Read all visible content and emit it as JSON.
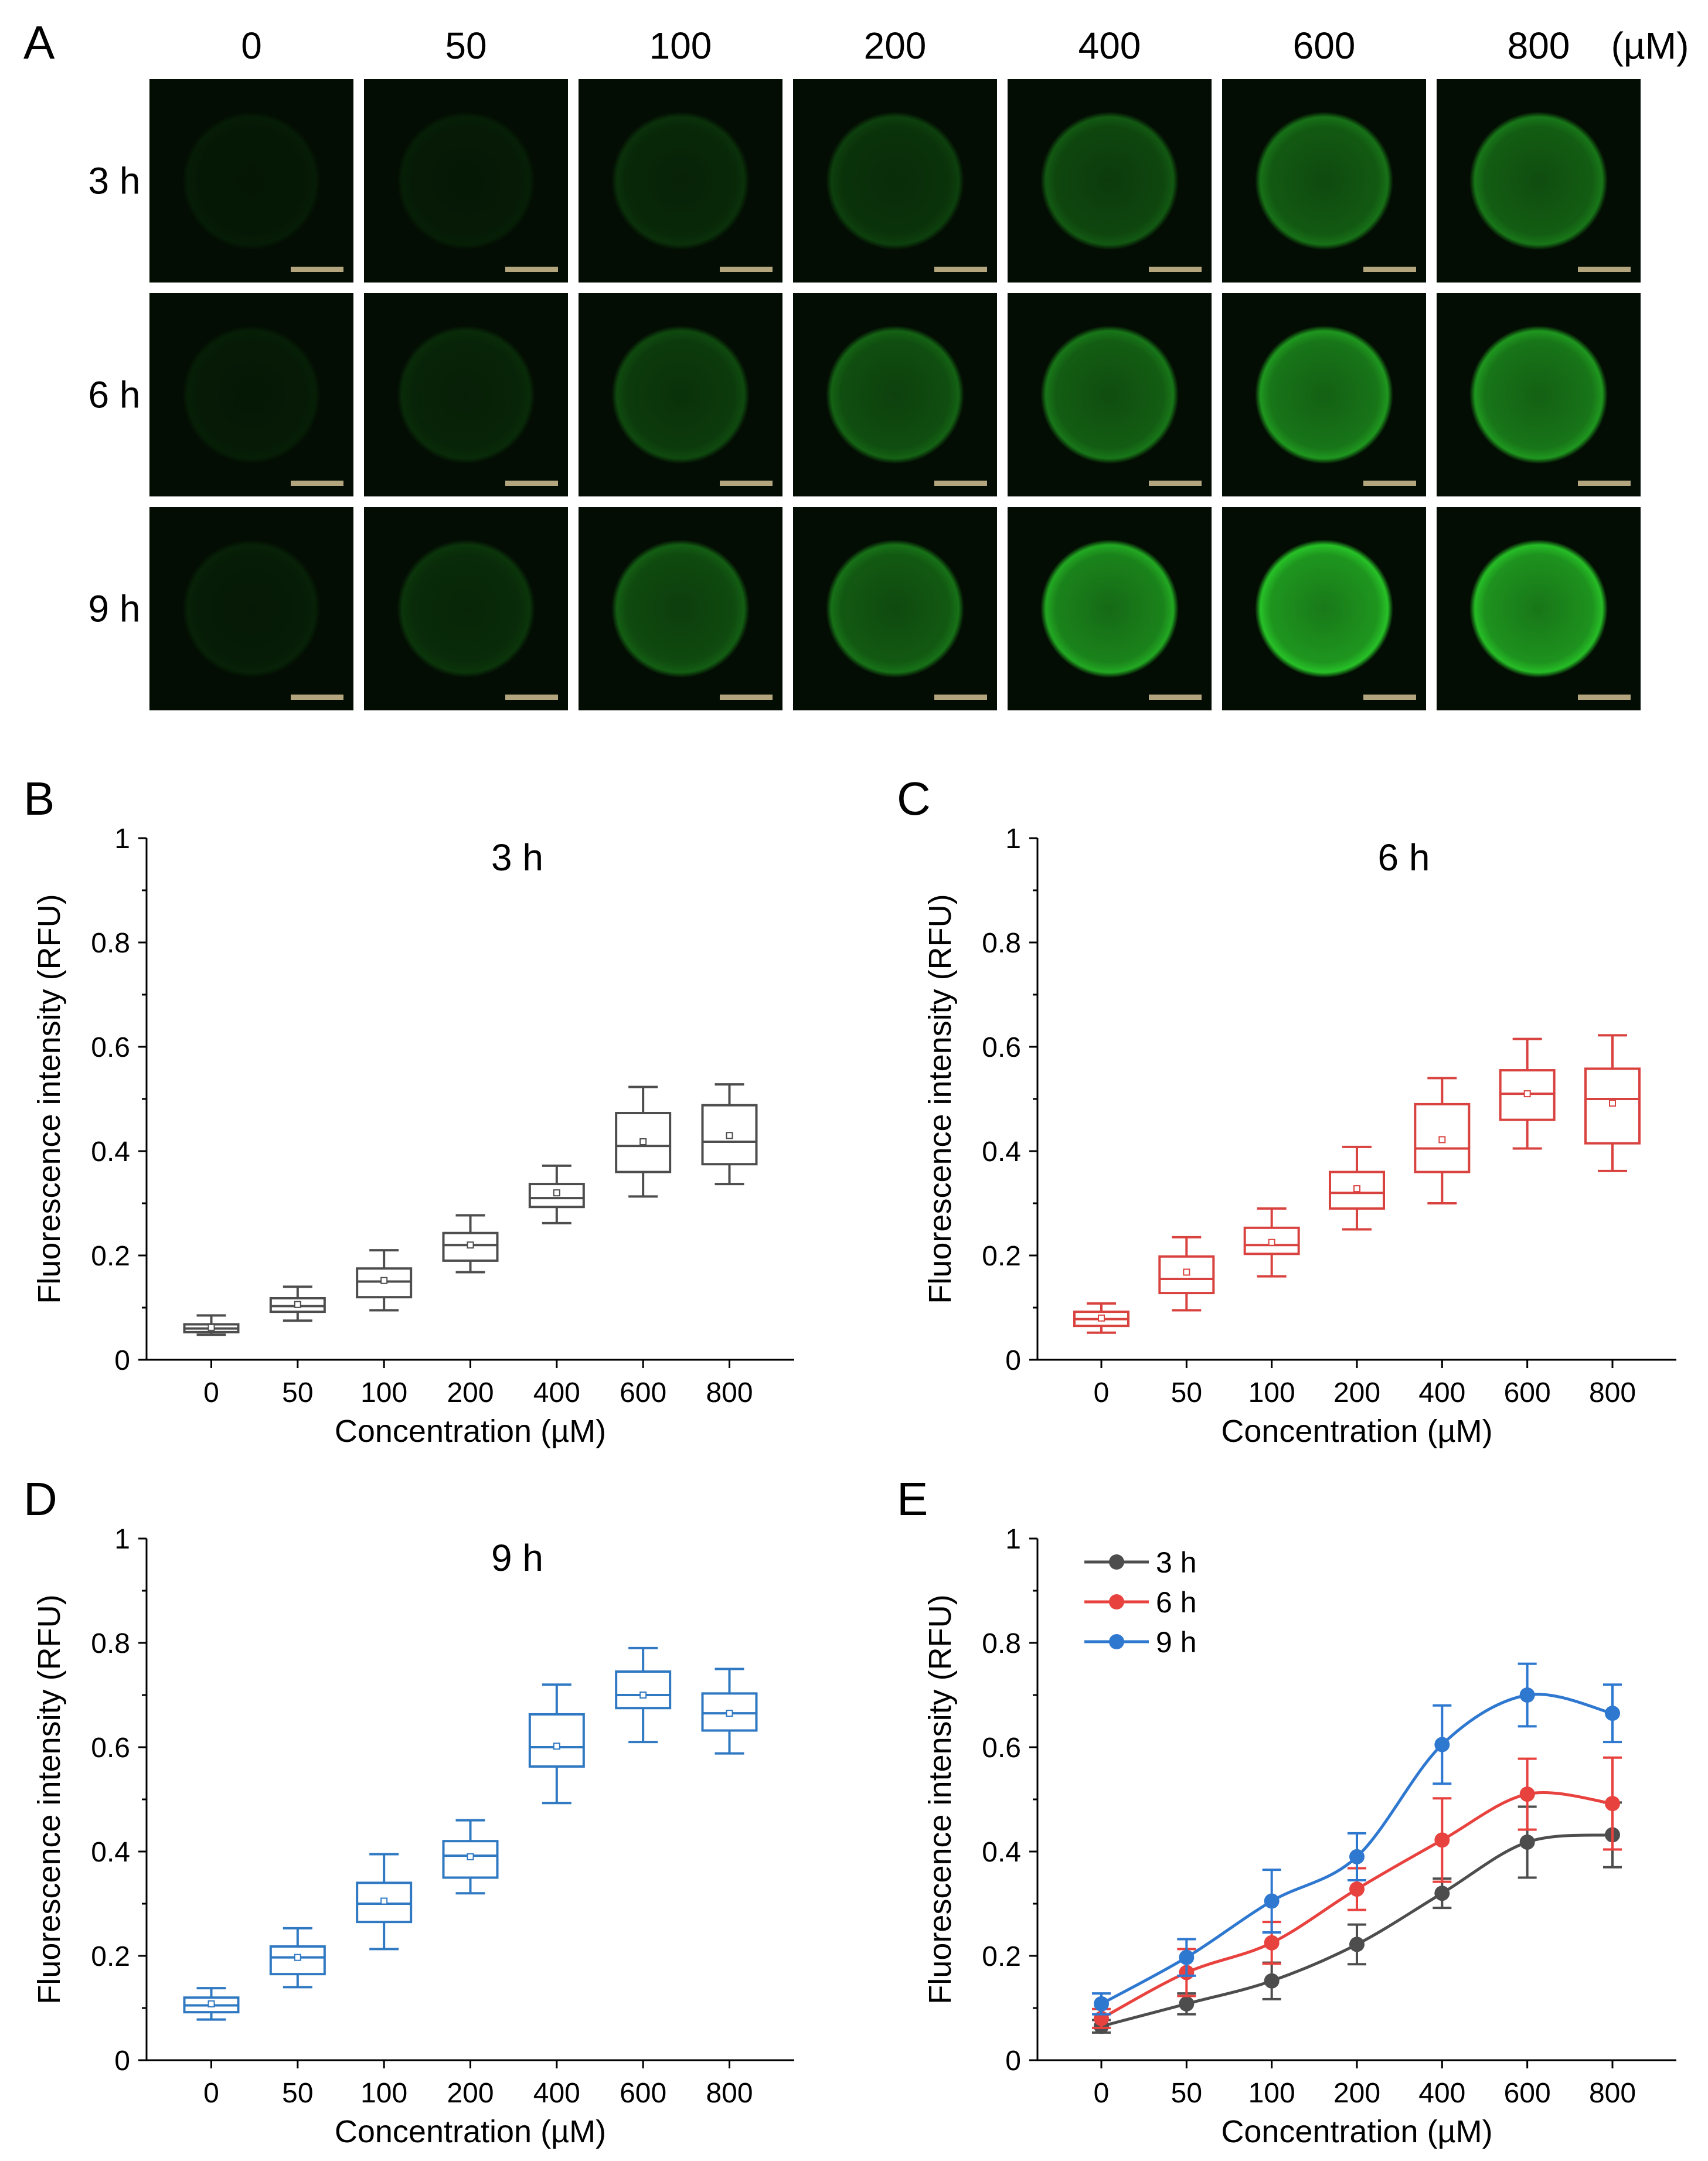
{
  "panel_a": {
    "label": "A",
    "unit": "(µM)",
    "concentrations": [
      "0",
      "50",
      "100",
      "200",
      "400",
      "600",
      "800"
    ],
    "rows": [
      "3 h",
      "6 h",
      "9 h"
    ],
    "relative_brightness": [
      [
        0.06,
        0.07,
        0.14,
        0.2,
        0.3,
        0.4,
        0.42
      ],
      [
        0.07,
        0.12,
        0.24,
        0.34,
        0.42,
        0.55,
        0.55
      ],
      [
        0.08,
        0.16,
        0.32,
        0.4,
        0.62,
        0.72,
        0.7
      ]
    ],
    "colors": {
      "background": "#030d03",
      "cell": "#2bd52b",
      "scale_bar": "#b3a67e"
    }
  },
  "chart_data": [
    {
      "id": "B",
      "type": "box",
      "label": "B",
      "title": "3 h",
      "xlabel": "Concentration (µM)",
      "ylabel": "Fluorescence intensity (RFU)",
      "categories": [
        "0",
        "50",
        "100",
        "200",
        "400",
        "600",
        "800"
      ],
      "ylim": [
        0,
        1
      ],
      "yticks": [
        0,
        0.2,
        0.4,
        0.6,
        0.8,
        1
      ],
      "ytick_labels": [
        "0",
        "0.2",
        "0.4",
        "0.6",
        "0.8",
        "1"
      ],
      "color": "#4d4d4d",
      "boxes": [
        {
          "min": 0.048,
          "q1": 0.053,
          "median": 0.06,
          "q3": 0.068,
          "max": 0.085,
          "mean": 0.062
        },
        {
          "min": 0.075,
          "q1": 0.092,
          "median": 0.103,
          "q3": 0.118,
          "max": 0.14,
          "mean": 0.106
        },
        {
          "min": 0.095,
          "q1": 0.12,
          "median": 0.15,
          "q3": 0.175,
          "max": 0.21,
          "mean": 0.152
        },
        {
          "min": 0.168,
          "q1": 0.19,
          "median": 0.22,
          "q3": 0.243,
          "max": 0.277,
          "mean": 0.22
        },
        {
          "min": 0.262,
          "q1": 0.293,
          "median": 0.31,
          "q3": 0.337,
          "max": 0.372,
          "mean": 0.32
        },
        {
          "min": 0.313,
          "q1": 0.36,
          "median": 0.41,
          "q3": 0.473,
          "max": 0.523,
          "mean": 0.418
        },
        {
          "min": 0.337,
          "q1": 0.375,
          "median": 0.418,
          "q3": 0.488,
          "max": 0.528,
          "mean": 0.43
        }
      ]
    },
    {
      "id": "C",
      "type": "box",
      "label": "C",
      "title": "6 h",
      "xlabel": "Concentration (µM)",
      "ylabel": "Fluorescence intensity (RFU)",
      "categories": [
        "0",
        "50",
        "100",
        "200",
        "400",
        "600",
        "800"
      ],
      "ylim": [
        0,
        1
      ],
      "yticks": [
        0,
        0.2,
        0.4,
        0.6,
        0.8,
        1
      ],
      "ytick_labels": [
        "0",
        "0.2",
        "0.4",
        "0.6",
        "0.8",
        "1"
      ],
      "color": "#d9433f",
      "boxes": [
        {
          "min": 0.052,
          "q1": 0.065,
          "median": 0.078,
          "q3": 0.092,
          "max": 0.108,
          "mean": 0.08
        },
        {
          "min": 0.095,
          "q1": 0.128,
          "median": 0.155,
          "q3": 0.198,
          "max": 0.235,
          "mean": 0.168
        },
        {
          "min": 0.16,
          "q1": 0.203,
          "median": 0.22,
          "q3": 0.253,
          "max": 0.29,
          "mean": 0.225
        },
        {
          "min": 0.25,
          "q1": 0.29,
          "median": 0.32,
          "q3": 0.36,
          "max": 0.408,
          "mean": 0.328
        },
        {
          "min": 0.3,
          "q1": 0.36,
          "median": 0.405,
          "q3": 0.49,
          "max": 0.54,
          "mean": 0.422
        },
        {
          "min": 0.405,
          "q1": 0.46,
          "median": 0.51,
          "q3": 0.555,
          "max": 0.615,
          "mean": 0.51
        },
        {
          "min": 0.362,
          "q1": 0.415,
          "median": 0.5,
          "q3": 0.558,
          "max": 0.622,
          "mean": 0.492
        }
      ]
    },
    {
      "id": "D",
      "type": "box",
      "label": "D",
      "title": "9 h",
      "xlabel": "Concentration (µM)",
      "ylabel": "Fluorescence intensity (RFU)",
      "categories": [
        "0",
        "50",
        "100",
        "200",
        "400",
        "600",
        "800"
      ],
      "ylim": [
        0,
        1
      ],
      "yticks": [
        0,
        0.2,
        0.4,
        0.6,
        0.8,
        1
      ],
      "ytick_labels": [
        "0",
        "0.2",
        "0.4",
        "0.6",
        "0.8",
        "1"
      ],
      "color": "#2f78c2",
      "boxes": [
        {
          "min": 0.078,
          "q1": 0.092,
          "median": 0.105,
          "q3": 0.12,
          "max": 0.138,
          "mean": 0.108
        },
        {
          "min": 0.14,
          "q1": 0.165,
          "median": 0.197,
          "q3": 0.218,
          "max": 0.253,
          "mean": 0.197
        },
        {
          "min": 0.213,
          "q1": 0.265,
          "median": 0.3,
          "q3": 0.34,
          "max": 0.395,
          "mean": 0.305
        },
        {
          "min": 0.32,
          "q1": 0.35,
          "median": 0.392,
          "q3": 0.42,
          "max": 0.46,
          "mean": 0.39
        },
        {
          "min": 0.493,
          "q1": 0.563,
          "median": 0.6,
          "q3": 0.663,
          "max": 0.72,
          "mean": 0.602
        },
        {
          "min": 0.61,
          "q1": 0.675,
          "median": 0.7,
          "q3": 0.745,
          "max": 0.79,
          "mean": 0.7
        },
        {
          "min": 0.588,
          "q1": 0.632,
          "median": 0.665,
          "q3": 0.703,
          "max": 0.75,
          "mean": 0.665
        }
      ]
    },
    {
      "id": "E",
      "type": "line",
      "label": "E",
      "title": "",
      "xlabel": "Concentration (µM)",
      "ylabel": "Fluorescence intensity (RFU)",
      "categories": [
        "0",
        "50",
        "100",
        "200",
        "400",
        "600",
        "800"
      ],
      "ylim": [
        0,
        1
      ],
      "yticks": [
        0,
        0.2,
        0.4,
        0.6,
        0.8,
        1
      ],
      "ytick_labels": [
        "0",
        "0.2",
        "0.4",
        "0.6",
        "0.8",
        "1"
      ],
      "legend_position": "top-left",
      "series": [
        {
          "name": "3 h",
          "color": "#4d4d4d",
          "values": [
            0.065,
            0.108,
            0.152,
            0.222,
            0.32,
            0.418,
            0.432
          ],
          "errors": [
            0.012,
            0.02,
            0.035,
            0.038,
            0.028,
            0.068,
            0.062
          ]
        },
        {
          "name": "6 h",
          "color": "#e8423f",
          "values": [
            0.08,
            0.168,
            0.225,
            0.328,
            0.422,
            0.51,
            0.492
          ],
          "errors": [
            0.018,
            0.045,
            0.04,
            0.04,
            0.08,
            0.068,
            0.088
          ]
        },
        {
          "name": "9 h",
          "color": "#2f78d0",
          "values": [
            0.108,
            0.197,
            0.305,
            0.39,
            0.605,
            0.7,
            0.665
          ],
          "errors": [
            0.02,
            0.035,
            0.06,
            0.045,
            0.075,
            0.06,
            0.055
          ]
        }
      ]
    }
  ]
}
